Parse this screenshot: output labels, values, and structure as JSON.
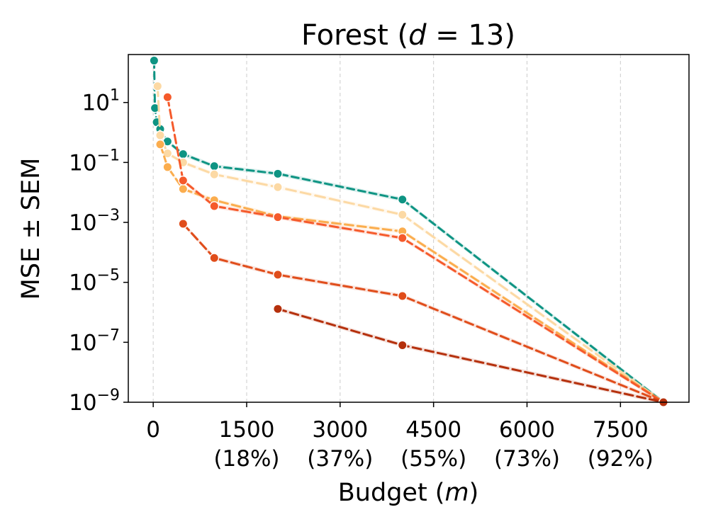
{
  "chart_data": {
    "type": "line",
    "title_prefix": "Forest (",
    "title_var": "d",
    "title_suffix": " = 13)",
    "xlabel_prefix": "Budget (",
    "xlabel_var": "m",
    "xlabel_suffix": ")",
    "ylabel": "MSE ± SEM",
    "yscale": "log",
    "xlim": [
      -400,
      8600
    ],
    "ylim_exp": [
      -9,
      2.6
    ],
    "xticks": [
      {
        "value": 0,
        "label": "0",
        "pct": ""
      },
      {
        "value": 1500,
        "label": "1500",
        "pct": "(18%)"
      },
      {
        "value": 3000,
        "label": "3000",
        "pct": "(37%)"
      },
      {
        "value": 4500,
        "label": "4500",
        "pct": "(55%)"
      },
      {
        "value": 6000,
        "label": "6000",
        "pct": "(73%)"
      },
      {
        "value": 7500,
        "label": "7500",
        "pct": "(92%)"
      }
    ],
    "yticks": [
      {
        "exp": 1,
        "base": "10",
        "sup": "1"
      },
      {
        "exp": -1,
        "base": "10",
        "sup": "−1"
      },
      {
        "exp": -3,
        "base": "10",
        "sup": "−3"
      },
      {
        "exp": -5,
        "base": "10",
        "sup": "−5"
      },
      {
        "exp": -7,
        "base": "10",
        "sup": "−7"
      },
      {
        "exp": -9,
        "base": "10",
        "sup": "−9"
      }
    ],
    "grid": "vertical-dashed",
    "series": [
      {
        "name": "series-1",
        "color": "#0e9483",
        "dash": "10,6",
        "x": [
          14,
          28,
          56,
          112,
          230,
          480,
          980,
          2000,
          4000,
          8190
        ],
        "y": [
          250,
          6.5,
          2.2,
          1.3,
          0.5,
          0.19,
          0.075,
          0.042,
          0.0058,
          1e-09
        ]
      },
      {
        "name": "series-2",
        "color": "#fcd9a4",
        "dash": "14,7",
        "x": [
          70,
          112,
          230,
          480,
          980,
          2000,
          4000,
          8190
        ],
        "y": [
          35,
          0.8,
          0.2,
          0.1,
          0.04,
          0.015,
          0.0018,
          1e-09
        ]
      },
      {
        "name": "series-3",
        "color": "#fbad4e",
        "dash": "12,6",
        "x": [
          112,
          230,
          480,
          980,
          2000,
          4000,
          8190
        ],
        "y": [
          0.4,
          0.07,
          0.013,
          0.0055,
          0.0016,
          0.0005,
          1e-09
        ]
      },
      {
        "name": "series-4",
        "color": "#f55a2b",
        "dash": "12,6",
        "x": [
          230,
          480,
          980,
          2000,
          4000,
          8190
        ],
        "y": [
          15,
          0.025,
          0.0035,
          0.0015,
          0.0003,
          1e-09
        ]
      },
      {
        "name": "series-5",
        "color": "#e04d1b",
        "dash": "12,6",
        "x": [
          480,
          980,
          2000,
          4000,
          8190
        ],
        "y": [
          0.0009,
          6.5e-05,
          1.8e-05,
          3.5e-06,
          1e-09
        ]
      },
      {
        "name": "series-6",
        "color": "#b5300c",
        "dash": "12,6",
        "x": [
          2000,
          4000,
          8190
        ],
        "y": [
          1.3e-06,
          8e-08,
          1e-09
        ]
      }
    ]
  }
}
